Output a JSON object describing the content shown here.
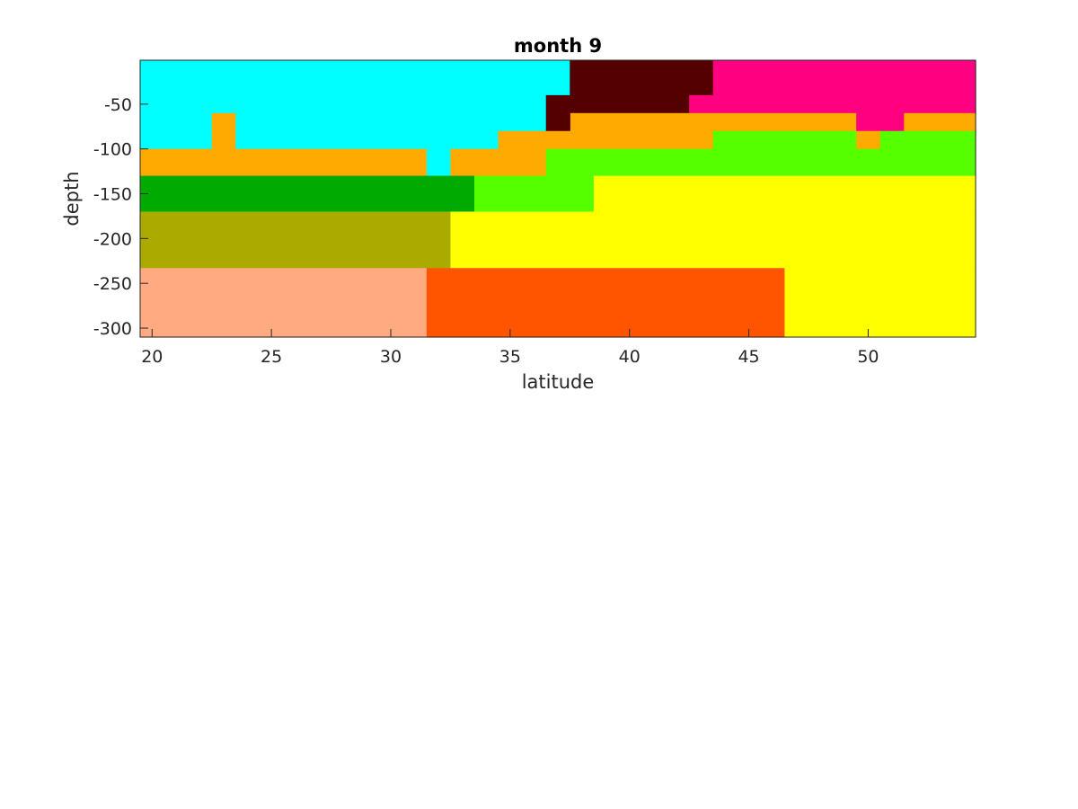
{
  "chart_data": {
    "type": "heatmap",
    "title": "month 9",
    "xlabel": "latitude",
    "ylabel": "depth",
    "xlim": [
      19.5,
      54.5
    ],
    "ylim": [
      -310,
      -1
    ],
    "x_ticks": [
      {
        "value": 20,
        "label": "20"
      },
      {
        "value": 25,
        "label": "25"
      },
      {
        "value": 30,
        "label": "30"
      },
      {
        "value": 35,
        "label": "35"
      },
      {
        "value": 40,
        "label": "40"
      },
      {
        "value": 45,
        "label": "45"
      },
      {
        "value": 50,
        "label": "50"
      }
    ],
    "y_ticks": [
      {
        "value": -50,
        "label": "-50"
      },
      {
        "value": -100,
        "label": "-100"
      },
      {
        "value": -150,
        "label": "-150"
      },
      {
        "value": -200,
        "label": "-200"
      },
      {
        "value": -250,
        "label": "-250"
      },
      {
        "value": -300,
        "label": "-300"
      }
    ],
    "grid": false,
    "colors": {
      "cyan": "#00FFFF",
      "dark_red": "#550000",
      "magenta": "#FF0080",
      "orange": "#FFAA00",
      "lime": "#55FF00",
      "green": "#00AA00",
      "olive": "#AAAA00",
      "yellow": "#FFFF00",
      "salmon": "#FFAA80",
      "red_orange": "#FF5500"
    },
    "regions": [
      {
        "x0": 19.5,
        "x1": 37.5,
        "y_top": -1,
        "y_bottom": -40,
        "color": "cyan"
      },
      {
        "x0": 37.5,
        "x1": 43.5,
        "y_top": -1,
        "y_bottom": -40,
        "color": "dark_red"
      },
      {
        "x0": 43.5,
        "x1": 54.5,
        "y_top": -1,
        "y_bottom": -40,
        "color": "magenta"
      },
      {
        "x0": 19.5,
        "x1": 36.5,
        "y_top": -40,
        "y_bottom": -60,
        "color": "cyan"
      },
      {
        "x0": 36.5,
        "x1": 37.5,
        "y_top": -40,
        "y_bottom": -60,
        "color": "dark_red"
      },
      {
        "x0": 37.5,
        "x1": 42.5,
        "y_top": -40,
        "y_bottom": -60,
        "color": "dark_red"
      },
      {
        "x0": 42.5,
        "x1": 54.5,
        "y_top": -40,
        "y_bottom": -60,
        "color": "magenta"
      },
      {
        "x0": 37.5,
        "x1": 49.5,
        "y_top": -60,
        "y_bottom": -80,
        "color": "orange"
      },
      {
        "x0": 49.5,
        "x1": 51.5,
        "y_top": -60,
        "y_bottom": -80,
        "color": "magenta"
      },
      {
        "x0": 51.5,
        "x1": 54.5,
        "y_top": -60,
        "y_bottom": -80,
        "color": "orange"
      },
      {
        "x0": 19.5,
        "x1": 22.5,
        "y_top": -60,
        "y_bottom": -80,
        "color": "cyan"
      },
      {
        "x0": 22.5,
        "x1": 23.5,
        "y_top": -60,
        "y_bottom": -80,
        "color": "orange"
      },
      {
        "x0": 23.5,
        "x1": 36.5,
        "y_top": -60,
        "y_bottom": -80,
        "color": "cyan"
      },
      {
        "x0": 36.5,
        "x1": 37.5,
        "y_top": -60,
        "y_bottom": -80,
        "color": "dark_red"
      },
      {
        "x0": 19.5,
        "x1": 22.5,
        "y_top": -80,
        "y_bottom": -100,
        "color": "cyan"
      },
      {
        "x0": 22.5,
        "x1": 23.5,
        "y_top": -80,
        "y_bottom": -100,
        "color": "orange"
      },
      {
        "x0": 23.5,
        "x1": 34.5,
        "y_top": -80,
        "y_bottom": -100,
        "color": "cyan"
      },
      {
        "x0": 34.5,
        "x1": 43.5,
        "y_top": -80,
        "y_bottom": -100,
        "color": "orange"
      },
      {
        "x0": 43.5,
        "x1": 49.5,
        "y_top": -80,
        "y_bottom": -100,
        "color": "lime"
      },
      {
        "x0": 49.5,
        "x1": 50.5,
        "y_top": -80,
        "y_bottom": -100,
        "color": "orange"
      },
      {
        "x0": 50.5,
        "x1": 54.5,
        "y_top": -80,
        "y_bottom": -100,
        "color": "lime"
      },
      {
        "x0": 19.5,
        "x1": 31.5,
        "y_top": -100,
        "y_bottom": -130,
        "color": "orange"
      },
      {
        "x0": 31.5,
        "x1": 32.5,
        "y_top": -100,
        "y_bottom": -130,
        "color": "cyan"
      },
      {
        "x0": 32.5,
        "x1": 36.5,
        "y_top": -100,
        "y_bottom": -130,
        "color": "orange"
      },
      {
        "x0": 36.5,
        "x1": 54.5,
        "y_top": -100,
        "y_bottom": -130,
        "color": "lime"
      },
      {
        "x0": 19.5,
        "x1": 33.5,
        "y_top": -130,
        "y_bottom": -170,
        "color": "green"
      },
      {
        "x0": 33.5,
        "x1": 38.5,
        "y_top": -130,
        "y_bottom": -170,
        "color": "lime"
      },
      {
        "x0": 38.5,
        "x1": 54.5,
        "y_top": -130,
        "y_bottom": -170,
        "color": "yellow"
      },
      {
        "x0": 19.5,
        "x1": 32.5,
        "y_top": -170,
        "y_bottom": -233,
        "color": "olive"
      },
      {
        "x0": 32.5,
        "x1": 54.5,
        "y_top": -170,
        "y_bottom": -233,
        "color": "yellow"
      },
      {
        "x0": 19.5,
        "x1": 31.5,
        "y_top": -233,
        "y_bottom": -310,
        "color": "salmon"
      },
      {
        "x0": 31.5,
        "x1": 46.5,
        "y_top": -233,
        "y_bottom": -310,
        "color": "red_orange"
      },
      {
        "x0": 46.5,
        "x1": 54.5,
        "y_top": -233,
        "y_bottom": -310,
        "color": "yellow"
      }
    ]
  }
}
